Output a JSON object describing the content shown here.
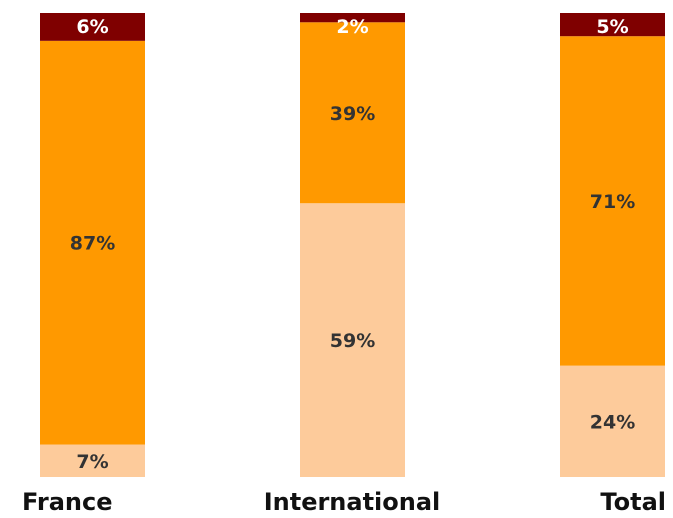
{
  "chart_data": {
    "type": "bar",
    "stacked": true,
    "percent_stacked": true,
    "orientation": "vertical",
    "categories": [
      "France",
      "International",
      "Total"
    ],
    "series": [
      {
        "values": [
          7,
          59,
          24
        ],
        "labels": [
          "7%",
          "59%",
          "24%"
        ],
        "color": "#FDCB9B",
        "label_color": "#333333"
      },
      {
        "values": [
          87,
          39,
          71
        ],
        "labels": [
          "87%",
          "39%",
          "71%"
        ],
        "color": "#FF9900",
        "label_color": "#333333"
      },
      {
        "values": [
          6,
          2,
          5
        ],
        "labels": [
          "6%",
          "2%",
          "5%"
        ],
        "color": "#7F0000",
        "label_color": "#ffffff"
      }
    ],
    "ylim": [
      0,
      100
    ],
    "grid": false,
    "legend": "none",
    "title": "",
    "xlabel": "",
    "ylabel": ""
  }
}
